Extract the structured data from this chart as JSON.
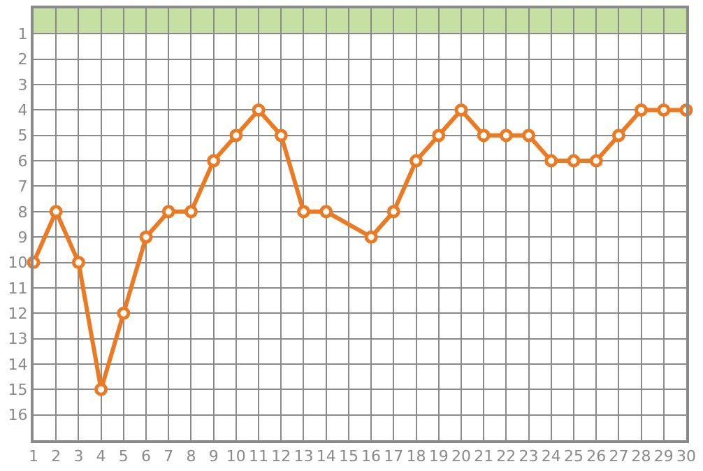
{
  "chart_data": {
    "type": "line",
    "x": [
      1,
      2,
      3,
      4,
      5,
      6,
      7,
      8,
      9,
      10,
      11,
      12,
      13,
      14,
      15,
      16,
      17,
      18,
      19,
      20,
      21,
      22,
      23,
      24,
      25,
      26,
      27,
      28,
      29,
      30
    ],
    "series": [
      {
        "color": "#eb7a23",
        "values": [
          10,
          8,
          10,
          15,
          12,
          9,
          8,
          8,
          6,
          5,
          4,
          5,
          8,
          8,
          null,
          9,
          8,
          6,
          5,
          4,
          5,
          5,
          5,
          6,
          6,
          6,
          5,
          4,
          4,
          4
        ]
      }
    ],
    "xlim": [
      1,
      30
    ],
    "xticks": [
      1,
      2,
      3,
      4,
      5,
      6,
      7,
      8,
      9,
      10,
      11,
      12,
      13,
      14,
      15,
      16,
      17,
      18,
      19,
      20,
      21,
      22,
      23,
      24,
      25,
      26,
      27,
      28,
      29,
      30
    ],
    "ylim": [
      17,
      0
    ],
    "yticks": [
      1,
      2,
      3,
      4,
      5,
      6,
      7,
      8,
      9,
      10,
      11,
      12,
      13,
      14,
      15,
      16
    ],
    "bands": [
      {
        "axis": "y",
        "from": 0,
        "to": 1,
        "color": "#c6e0a4"
      }
    ],
    "grid": true,
    "marker": "circle",
    "line_style": "solid"
  }
}
